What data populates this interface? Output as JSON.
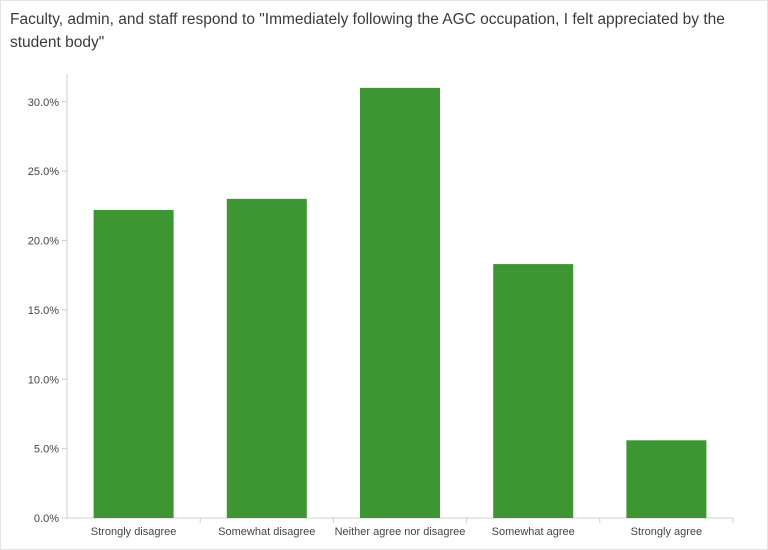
{
  "chart_data": {
    "type": "bar",
    "title": "Faculty, admin, and staff respond to \"Immediately following the AGC occupation, I felt appreciated by the student body\"",
    "categories": [
      "Strongly disagree",
      "Somewhat disagree",
      "Neither agree nor disagree",
      "Somewhat agree",
      "Strongly agree"
    ],
    "values": [
      22.2,
      23.0,
      31.0,
      18.3,
      5.6
    ],
    "y_ticks": [
      "0.0%",
      "5.0%",
      "10.0%",
      "15.0%",
      "20.0%",
      "25.0%",
      "30.0%"
    ],
    "ylim": [
      0,
      32
    ],
    "xlabel": "",
    "ylabel": "",
    "grid": false,
    "bar_color": "#3d9632"
  }
}
